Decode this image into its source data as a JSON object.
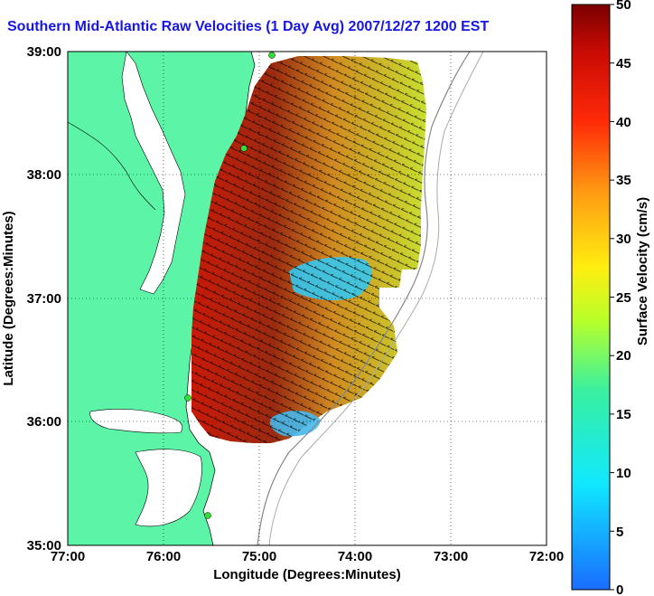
{
  "title": "Southern Mid-Atlantic Raw Velocities (1 Day Avg) 2007/12/27 1200 EST",
  "x_axis": {
    "label": "Longitude (Degrees:Minutes)",
    "ticks": [
      "77:00",
      "76:00",
      "75:00",
      "74:00",
      "73:00",
      "72:00"
    ]
  },
  "y_axis": {
    "label": "Latitude (Degrees:Minutes)",
    "ticks": [
      "39:00",
      "38:00",
      "37:00",
      "36:00",
      "35:00"
    ]
  },
  "colorbar": {
    "label": "Surface Velocity (cm/s)",
    "ticks": [
      "50",
      "45",
      "40",
      "35",
      "30",
      "25",
      "20",
      "15",
      "10",
      "5",
      "0"
    ],
    "range": [
      0,
      50
    ]
  },
  "colors": {
    "title": "#1616e6",
    "land": "#5cf5a8",
    "sites": "#33dd33"
  },
  "map_extent": {
    "lon_range": [
      -77,
      -72
    ],
    "lat_range": [
      35,
      39
    ]
  }
}
